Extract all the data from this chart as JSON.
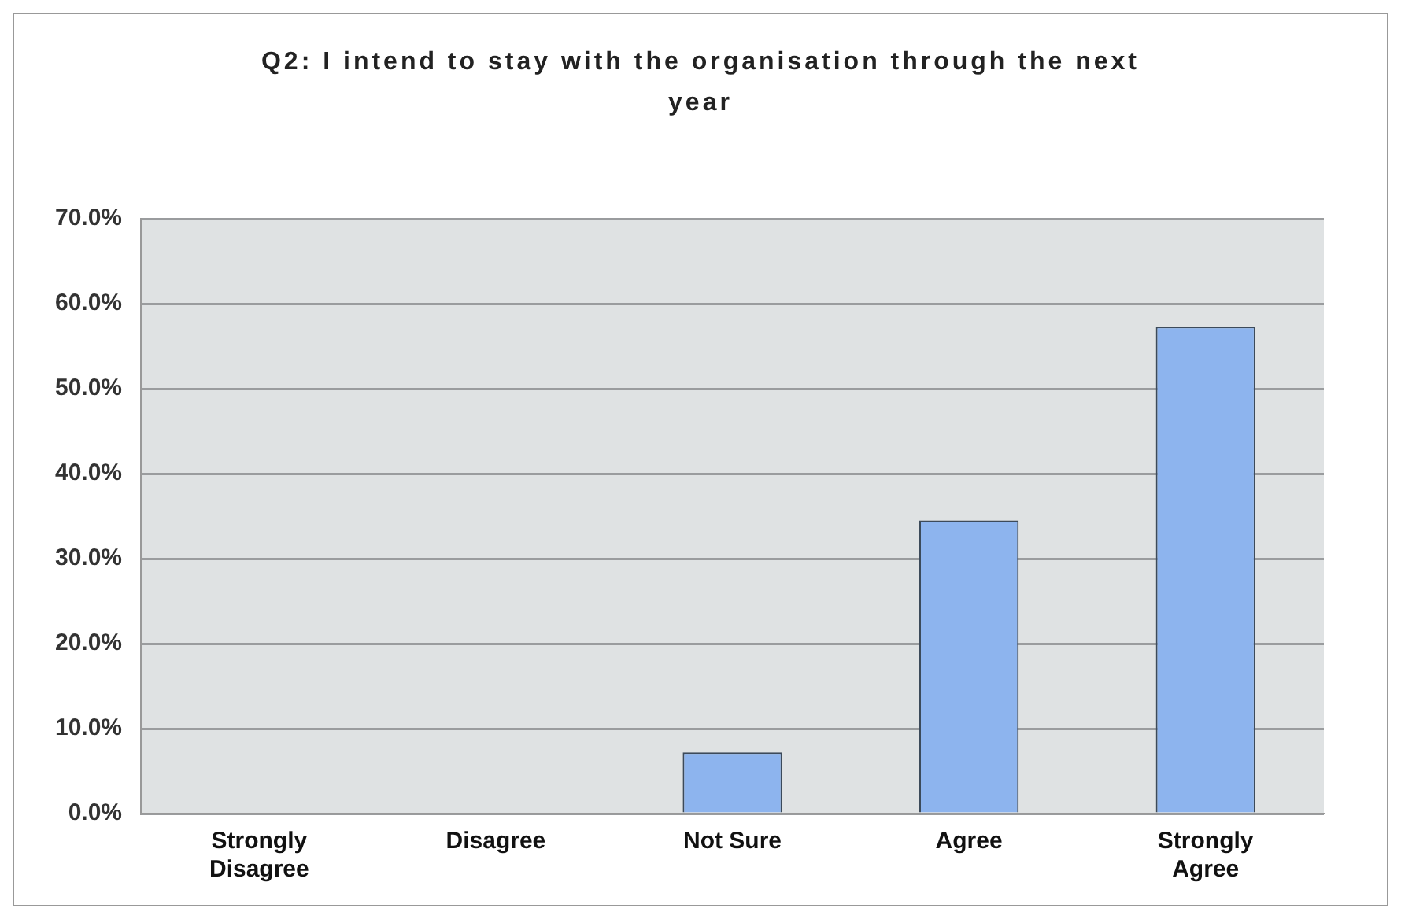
{
  "chart_data": {
    "type": "bar",
    "title": "Q2: I intend to stay with the organisation through the next year",
    "categories": [
      "Strongly\nDisagree",
      "Disagree",
      "Not Sure",
      "Agree",
      "Strongly\nAgree"
    ],
    "values": [
      0,
      0,
      7.2,
      34.5,
      57.3
    ],
    "color": "#8db4ee",
    "ylim": [
      0,
      70
    ],
    "yticks": [
      {
        "value": 0,
        "label": "0.0%"
      },
      {
        "value": 10,
        "label": "10.0%"
      },
      {
        "value": 20,
        "label": "20.0%"
      },
      {
        "value": 30,
        "label": "30.0%"
      },
      {
        "value": 40,
        "label": "40.0%"
      },
      {
        "value": 50,
        "label": "50.0%"
      },
      {
        "value": 60,
        "label": "60.0%"
      },
      {
        "value": 70,
        "label": "70.0%"
      }
    ],
    "grid": "y",
    "legend": false
  }
}
